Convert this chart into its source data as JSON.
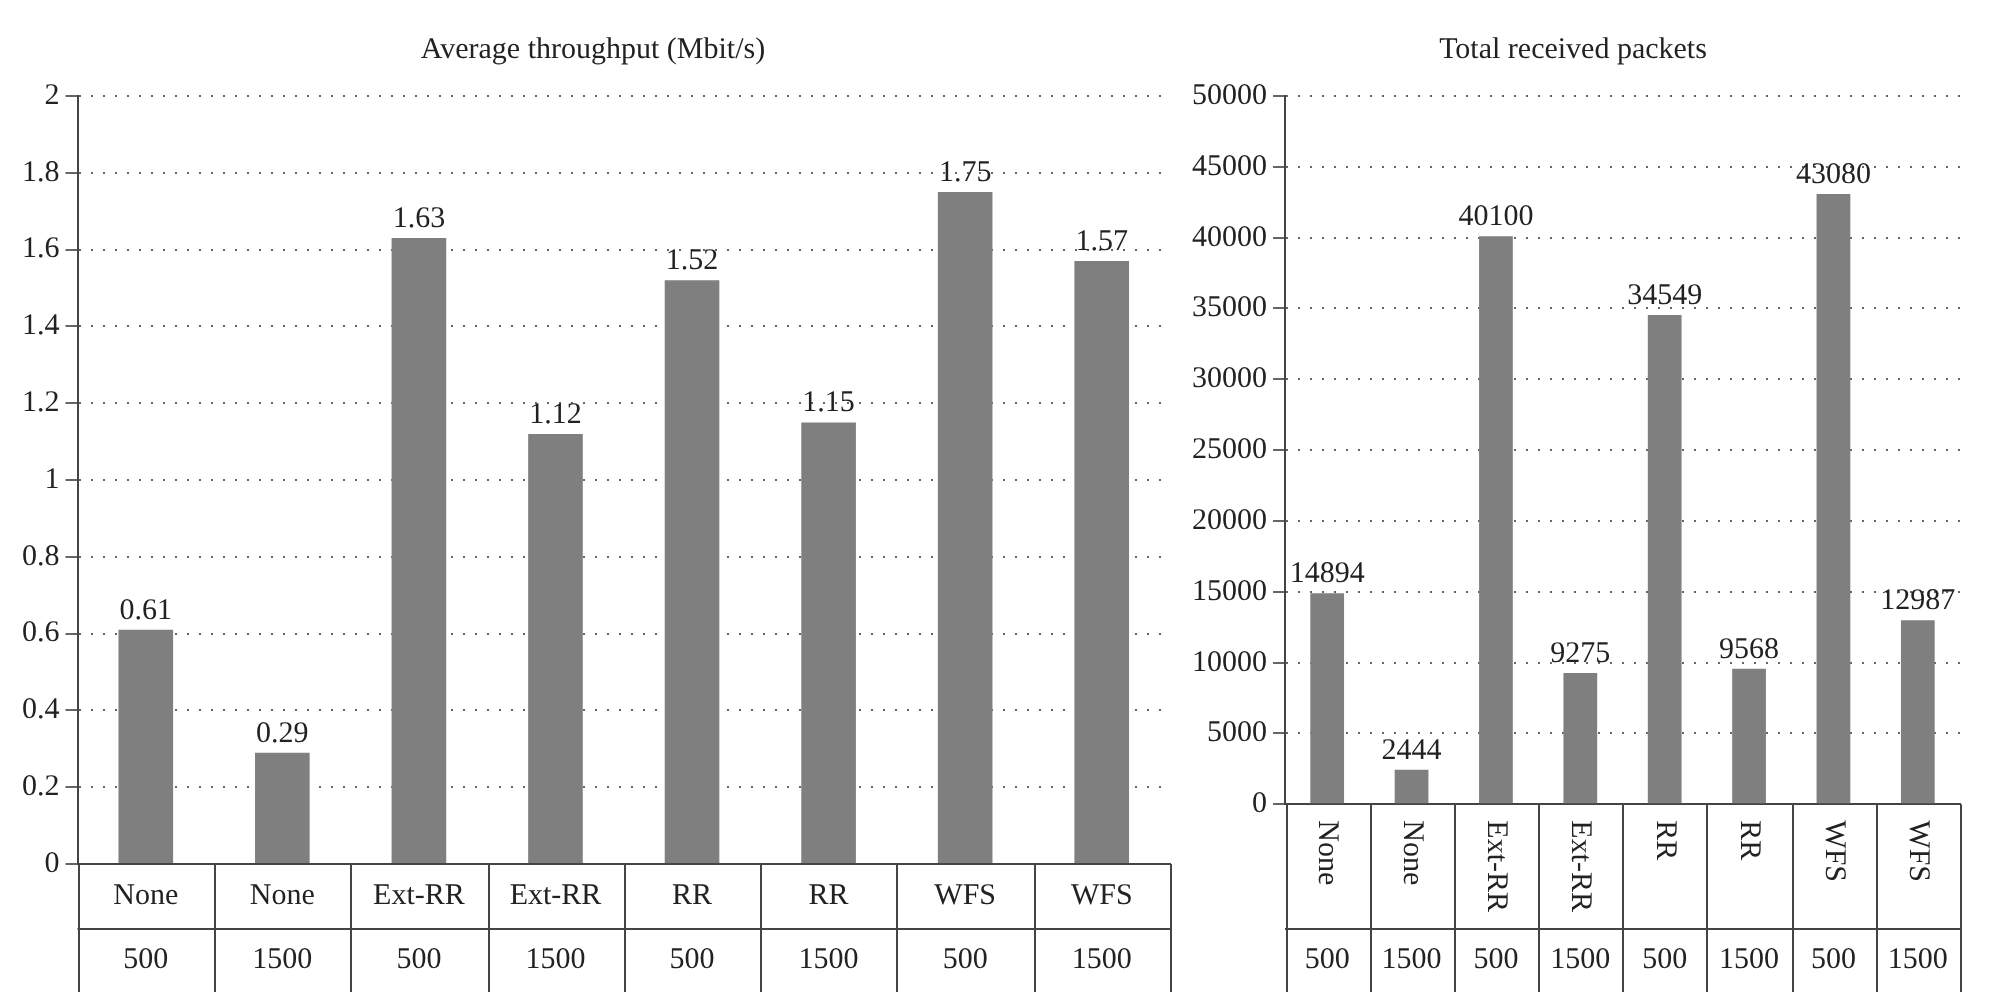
{
  "chart_data": [
    {
      "type": "bar",
      "title": "Average throughput (Mbit/s)",
      "categories": [
        "None\n500",
        "None\n1500",
        "Ext-RR\n500",
        "Ext-RR\n1500",
        "RR\n500",
        "RR\n1500",
        "WFS\n500",
        "WFS\n1500"
      ],
      "values": [
        0.61,
        0.29,
        1.63,
        1.12,
        1.52,
        1.15,
        1.75,
        1.57
      ],
      "color": "#7f7f7f",
      "ylim": [
        0,
        2
      ],
      "yticks": [
        0,
        {
          "value": 0.2,
          "label": "0.2"
        },
        {
          "value": 0.4,
          "label": "0.4"
        },
        {
          "value": 0.6,
          "label": "0.6"
        },
        {
          "value": 0.8,
          "label": "0.8"
        },
        1,
        {
          "value": 1.2,
          "label": "1.2"
        },
        {
          "value": 1.4,
          "label": "1.4"
        },
        {
          "value": 1.6,
          "label": "1.6"
        },
        {
          "value": 1.8,
          "label": "1.8"
        },
        2
      ],
      "grid": "y",
      "data_labels": true
    },
    {
      "type": "bar",
      "title": "Total received packets",
      "categories": [
        "None\n500",
        "None\n1500",
        "Ext-RR\n500",
        "Ext-RR\n1500",
        "RR\n500",
        "RR\n1500",
        "WFS\n500",
        "WFS\n1500"
      ],
      "values": [
        14894,
        2444,
        40100,
        9275,
        34549,
        9568,
        43080,
        12987
      ],
      "color": "#7f7f7f",
      "ylim": [
        0,
        50000
      ],
      "yticks": [
        0,
        5000,
        10000,
        15000,
        20000,
        25000,
        30000,
        35000,
        40000,
        45000,
        50000
      ],
      "grid": "y",
      "data_labels": true
    }
  ]
}
